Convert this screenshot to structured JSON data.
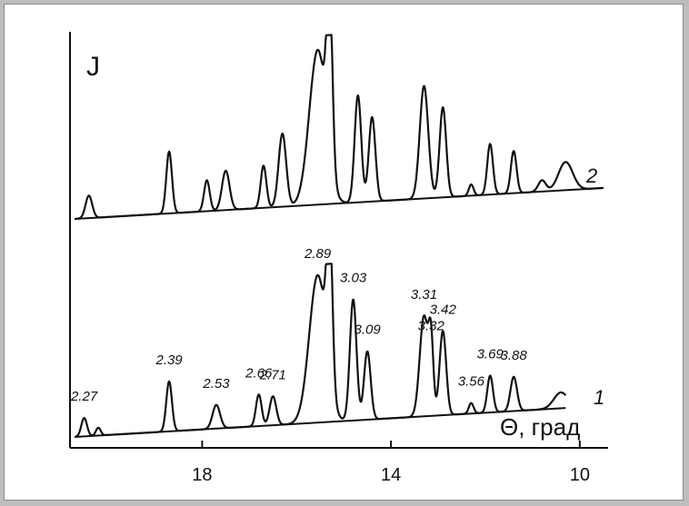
{
  "chart_data": {
    "type": "line",
    "title": "",
    "xlabel": "Θ, град",
    "ylabel": "J",
    "xlim": [
      20.8,
      9.4
    ],
    "x_reversed": true,
    "x_ticks": [
      18,
      14,
      10
    ],
    "x_tick_labels": [
      "18",
      "14",
      "10"
    ],
    "grid": false,
    "legend": "none",
    "series": [
      {
        "name": "1",
        "color": "#111111",
        "baseline": [
          [
            20.7,
            0.0
          ],
          [
            10.3,
            0.55
          ]
        ],
        "peaks": [
          {
            "x": 20.5,
            "height": 0.35,
            "width": 0.06,
            "label": "2.27"
          },
          {
            "x": 20.2,
            "height": 0.15,
            "width": 0.05,
            "label": ""
          },
          {
            "x": 18.7,
            "height": 0.95,
            "width": 0.06,
            "label": "2.39"
          },
          {
            "x": 17.7,
            "height": 0.45,
            "width": 0.08,
            "label": "2.53"
          },
          {
            "x": 16.8,
            "height": 0.6,
            "width": 0.06,
            "label": "2.66"
          },
          {
            "x": 16.5,
            "height": 0.55,
            "width": 0.07,
            "label": "2.71"
          },
          {
            "x": 15.55,
            "height": 2.8,
            "width": 0.18,
            "label": "2.89"
          },
          {
            "x": 15.3,
            "height": 3.0,
            "width": 0.06,
            "label": ""
          },
          {
            "x": 14.8,
            "height": 2.3,
            "width": 0.07,
            "label": "3.03"
          },
          {
            "x": 14.5,
            "height": 1.3,
            "width": 0.07,
            "label": "3.09"
          },
          {
            "x": 13.3,
            "height": 1.9,
            "width": 0.09,
            "label": "3.31"
          },
          {
            "x": 13.15,
            "height": 1.3,
            "width": 0.05,
            "label": "3.32"
          },
          {
            "x": 12.9,
            "height": 1.6,
            "width": 0.07,
            "label": "3.42"
          },
          {
            "x": 12.3,
            "height": 0.2,
            "width": 0.05,
            "label": "3.56"
          },
          {
            "x": 11.9,
            "height": 0.7,
            "width": 0.06,
            "label": "3.69"
          },
          {
            "x": 11.4,
            "height": 0.65,
            "width": 0.07,
            "label": "3.88"
          },
          {
            "x": 10.4,
            "height": 0.3,
            "width": 0.15,
            "label": ""
          }
        ]
      },
      {
        "name": "2",
        "color": "#111111",
        "baseline": [
          [
            20.7,
            0.0
          ],
          [
            9.5,
            0.55
          ]
        ],
        "peaks": [
          {
            "x": 20.4,
            "height": 0.4,
            "width": 0.07,
            "label": ""
          },
          {
            "x": 18.7,
            "height": 1.1,
            "width": 0.06,
            "label": ""
          },
          {
            "x": 17.9,
            "height": 0.55,
            "width": 0.06,
            "label": ""
          },
          {
            "x": 17.5,
            "height": 0.7,
            "width": 0.08,
            "label": ""
          },
          {
            "x": 16.7,
            "height": 0.75,
            "width": 0.06,
            "label": ""
          },
          {
            "x": 16.3,
            "height": 1.3,
            "width": 0.08,
            "label": ""
          },
          {
            "x": 15.55,
            "height": 2.75,
            "width": 0.18,
            "label": ""
          },
          {
            "x": 15.3,
            "height": 3.0,
            "width": 0.06,
            "label": ""
          },
          {
            "x": 14.7,
            "height": 1.9,
            "width": 0.07,
            "label": ""
          },
          {
            "x": 14.4,
            "height": 1.5,
            "width": 0.07,
            "label": ""
          },
          {
            "x": 13.3,
            "height": 2.0,
            "width": 0.09,
            "label": ""
          },
          {
            "x": 12.9,
            "height": 1.6,
            "width": 0.07,
            "label": ""
          },
          {
            "x": 12.3,
            "height": 0.2,
            "width": 0.05,
            "label": ""
          },
          {
            "x": 11.9,
            "height": 0.9,
            "width": 0.06,
            "label": ""
          },
          {
            "x": 11.4,
            "height": 0.75,
            "width": 0.06,
            "label": ""
          },
          {
            "x": 10.3,
            "height": 0.5,
            "width": 0.15,
            "label": ""
          },
          {
            "x": 10.8,
            "height": 0.2,
            "width": 0.08,
            "label": ""
          }
        ]
      }
    ]
  }
}
